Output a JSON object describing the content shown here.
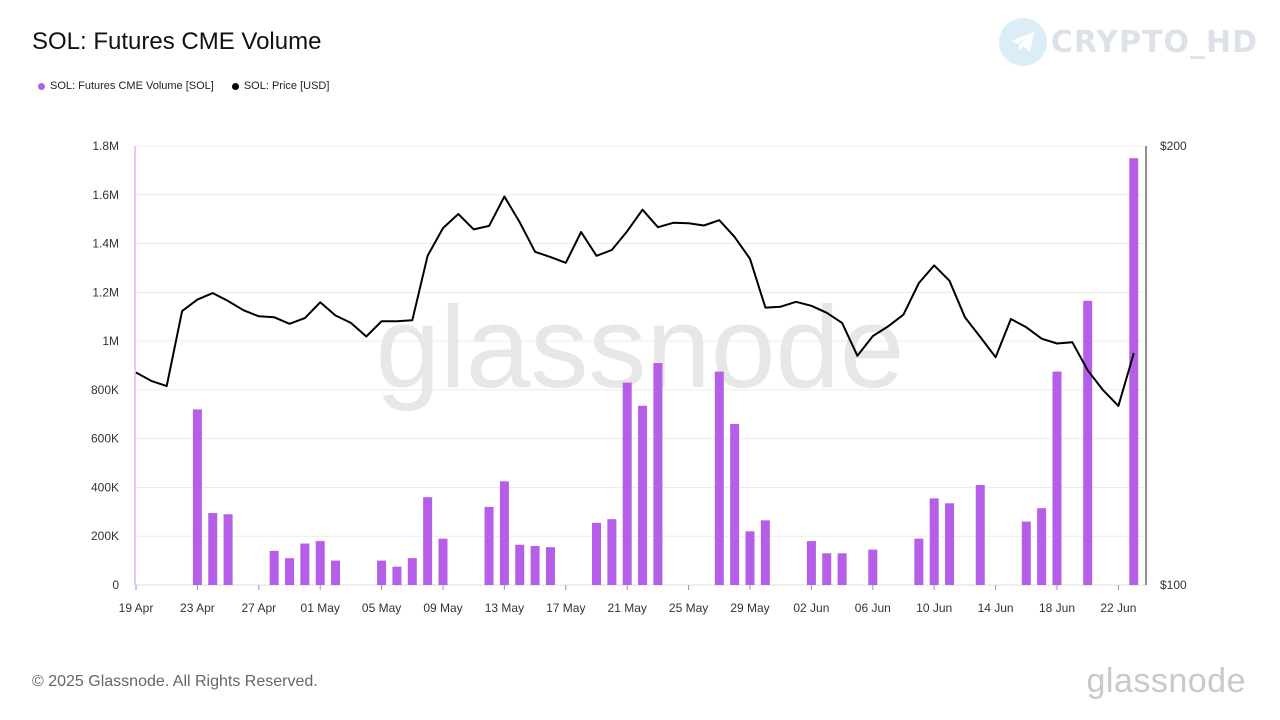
{
  "title": "SOL: Futures CME Volume",
  "brand": {
    "name": "CRYPTO_HD",
    "icon": "telegram-icon"
  },
  "watermark": "glassnode",
  "footer": {
    "copyright": "© 2025 Glassnode. All Rights Reserved.",
    "logo": "glassnode"
  },
  "colors": {
    "volume": "#b55ee8",
    "price": "#000000",
    "grid": "#ececec"
  },
  "chart_data": {
    "type": "bar",
    "legend_position": "top-left",
    "grid": true,
    "x_ticks": [
      "19 Apr",
      "23 Apr",
      "27 Apr",
      "01 May",
      "05 May",
      "09 May",
      "13 May",
      "17 May",
      "21 May",
      "25 May",
      "29 May",
      "02 Jun",
      "06 Jun",
      "10 Jun",
      "14 Jun",
      "18 Jun",
      "22 Jun"
    ],
    "y_left": {
      "ticks": [
        "0",
        "200K",
        "400K",
        "600K",
        "800K",
        "1M",
        "1.2M",
        "1.4M",
        "1.6M",
        "1.8M"
      ],
      "range": [
        0,
        1800000
      ]
    },
    "y_right": {
      "ticks": [
        "$100",
        "$200"
      ],
      "range": [
        100,
        200
      ]
    },
    "dates": [
      "19 Apr",
      "20 Apr",
      "21 Apr",
      "22 Apr",
      "23 Apr",
      "24 Apr",
      "25 Apr",
      "26 Apr",
      "27 Apr",
      "28 Apr",
      "29 Apr",
      "30 Apr",
      "01 May",
      "02 May",
      "03 May",
      "04 May",
      "05 May",
      "06 May",
      "07 May",
      "08 May",
      "09 May",
      "10 May",
      "11 May",
      "12 May",
      "13 May",
      "14 May",
      "15 May",
      "16 May",
      "17 May",
      "18 May",
      "19 May",
      "20 May",
      "21 May",
      "22 May",
      "23 May",
      "24 May",
      "25 May",
      "26 May",
      "27 May",
      "28 May",
      "29 May",
      "30 May",
      "31 May",
      "01 Jun",
      "02 Jun",
      "03 Jun",
      "04 Jun",
      "05 Jun",
      "06 Jun",
      "07 Jun",
      "08 Jun",
      "09 Jun",
      "10 Jun",
      "11 Jun",
      "12 Jun",
      "13 Jun",
      "14 Jun",
      "15 Jun",
      "16 Jun",
      "17 Jun",
      "18 Jun",
      "19 Jun",
      "20 Jun",
      "21 Jun",
      "22 Jun",
      "23 Jun"
    ],
    "series": [
      {
        "name": "SOL: Futures CME Volume [SOL]",
        "kind": "bar",
        "axis": "left",
        "values": [
          0,
          0,
          0,
          0,
          720000,
          295000,
          290000,
          0,
          0,
          140000,
          110000,
          170000,
          180000,
          100000,
          0,
          0,
          100000,
          75000,
          110000,
          360000,
          190000,
          0,
          0,
          320000,
          425000,
          165000,
          160000,
          155000,
          0,
          0,
          255000,
          270000,
          830000,
          735000,
          910000,
          0,
          0,
          0,
          875000,
          660000,
          220000,
          265000,
          0,
          0,
          180000,
          130000,
          130000,
          0,
          145000,
          0,
          0,
          190000,
          355000,
          335000,
          0,
          410000,
          0,
          0,
          260000,
          315000,
          875000,
          0,
          1165000,
          0,
          0,
          1750000
        ]
      },
      {
        "name": "SOL: Price [USD]",
        "kind": "line",
        "axis": "right",
        "values": [
          148.4,
          146.5,
          145.3,
          162.4,
          165.0,
          166.5,
          164.7,
          162.6,
          161.2,
          161.0,
          159.5,
          160.8,
          164.4,
          161.4,
          159.7,
          156.6,
          160.1,
          160.1,
          160.3,
          175.0,
          181.3,
          184.5,
          181.0,
          181.8,
          188.5,
          182.6,
          175.9,
          174.7,
          173.4,
          180.4,
          175.0,
          176.3,
          180.6,
          185.5,
          181.5,
          182.5,
          182.4,
          181.9,
          183.1,
          179.3,
          174.3,
          163.2,
          163.4,
          164.5,
          163.6,
          162.0,
          159.7,
          152.2,
          156.7,
          158.9,
          161.6,
          168.8,
          172.8,
          169.3,
          161.0,
          156.5,
          151.9,
          160.6,
          158.7,
          156.1,
          155.0,
          155.3,
          148.9,
          144.4,
          140.8,
          152.8
        ]
      }
    ]
  }
}
